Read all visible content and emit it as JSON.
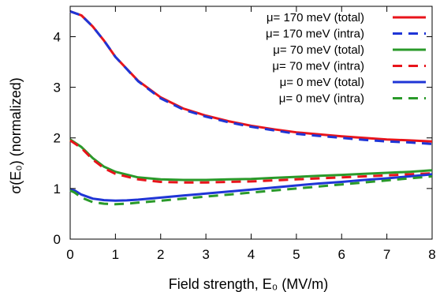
{
  "chart_data": {
    "type": "line",
    "xlabel": "Field strength, E₀ (MV/m)",
    "ylabel": "σ(E₀) (normalized)",
    "xlim": [
      0,
      8
    ],
    "ylim": [
      0,
      4.6
    ],
    "x_ticks": [
      "0",
      "1",
      "2",
      "3",
      "4",
      "5",
      "6",
      "7",
      "8"
    ],
    "y_ticks": [
      "0",
      "1",
      "2",
      "3",
      "4"
    ],
    "x_tick_values": [
      0,
      1,
      2,
      3,
      4,
      5,
      6,
      7,
      8
    ],
    "y_tick_values": [
      0,
      1,
      2,
      3,
      4
    ],
    "legend_position": "top-right",
    "grid": false,
    "series": [
      {
        "name": "μ= 170 meV (total)",
        "color": "#e8141b",
        "dash": "solid",
        "x": [
          0,
          0.25,
          0.5,
          0.75,
          1,
          1.5,
          2,
          2.5,
          3,
          3.5,
          4,
          4.5,
          5,
          5.5,
          6,
          6.5,
          7,
          7.5,
          8
        ],
        "y": [
          4.5,
          4.42,
          4.2,
          3.92,
          3.6,
          3.13,
          2.8,
          2.58,
          2.44,
          2.33,
          2.24,
          2.17,
          2.11,
          2.07,
          2.03,
          2.0,
          1.97,
          1.95,
          1.93
        ]
      },
      {
        "name": "μ= 170 meV (intra)",
        "color": "#1f35d6",
        "dash": "dashed",
        "x": [
          0,
          0.25,
          0.5,
          0.75,
          1,
          1.5,
          2,
          2.5,
          3,
          3.5,
          4,
          4.5,
          5,
          5.5,
          6,
          6.5,
          7,
          7.5,
          8
        ],
        "y": [
          4.5,
          4.42,
          4.2,
          3.92,
          3.6,
          3.12,
          2.78,
          2.56,
          2.42,
          2.31,
          2.22,
          2.15,
          2.08,
          2.04,
          2.0,
          1.96,
          1.93,
          1.91,
          1.88
        ]
      },
      {
        "name": "μ=  70 meV (total)",
        "color": "#2a9a2a",
        "dash": "solid",
        "x": [
          0,
          0.25,
          0.5,
          0.75,
          1,
          1.5,
          2,
          2.5,
          3,
          3.5,
          4,
          4.5,
          5,
          5.5,
          6,
          6.5,
          7,
          7.5,
          8
        ],
        "y": [
          1.97,
          1.82,
          1.6,
          1.43,
          1.33,
          1.22,
          1.18,
          1.17,
          1.17,
          1.18,
          1.19,
          1.21,
          1.23,
          1.25,
          1.27,
          1.29,
          1.31,
          1.33,
          1.36
        ]
      },
      {
        "name": "μ=  70 meV (intra)",
        "color": "#e8141b",
        "dash": "dashed",
        "x": [
          0,
          0.25,
          0.5,
          0.75,
          1,
          1.5,
          2,
          2.5,
          3,
          3.5,
          4,
          4.5,
          5,
          5.5,
          6,
          6.5,
          7,
          7.5,
          8
        ],
        "y": [
          1.95,
          1.8,
          1.57,
          1.4,
          1.29,
          1.18,
          1.13,
          1.12,
          1.12,
          1.13,
          1.14,
          1.16,
          1.18,
          1.2,
          1.22,
          1.24,
          1.26,
          1.28,
          1.3
        ]
      },
      {
        "name": "μ=   0 meV (total)",
        "color": "#1f35d6",
        "dash": "solid",
        "x": [
          0,
          0.1,
          0.25,
          0.5,
          0.75,
          1,
          1.25,
          1.5,
          2,
          2.5,
          3,
          3.5,
          4,
          4.5,
          5,
          5.5,
          6,
          6.5,
          7,
          7.5,
          8
        ],
        "y": [
          0.98,
          0.96,
          0.88,
          0.8,
          0.77,
          0.76,
          0.765,
          0.78,
          0.82,
          0.86,
          0.9,
          0.94,
          0.98,
          1.02,
          1.06,
          1.1,
          1.13,
          1.17,
          1.2,
          1.24,
          1.28
        ]
      },
      {
        "name": "μ=   0 meV (intra)",
        "color": "#2a9a2a",
        "dash": "dashed",
        "x": [
          0,
          0.1,
          0.25,
          0.5,
          0.75,
          1,
          1.25,
          1.5,
          2,
          2.5,
          3,
          3.5,
          4,
          4.5,
          5,
          5.5,
          6,
          6.5,
          7,
          7.5,
          8
        ],
        "y": [
          0.96,
          0.92,
          0.82,
          0.73,
          0.7,
          0.69,
          0.7,
          0.72,
          0.76,
          0.8,
          0.84,
          0.88,
          0.92,
          0.96,
          1.0,
          1.04,
          1.08,
          1.12,
          1.16,
          1.2,
          1.24
        ]
      }
    ]
  }
}
